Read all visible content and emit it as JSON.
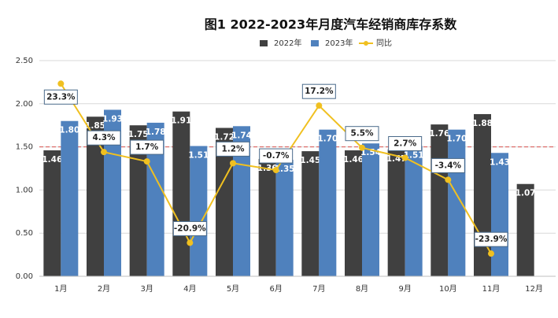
{
  "chart_data": {
    "type": "bar_line",
    "title": "图1  2022-2023年月度汽车经销商库存系数",
    "categories": [
      "1月",
      "2月",
      "3月",
      "4月",
      "5月",
      "6月",
      "7月",
      "8月",
      "9月",
      "10月",
      "11月",
      "12月"
    ],
    "series": [
      {
        "name": "2022年",
        "color": "#404040",
        "type": "bar",
        "values": [
          1.46,
          1.85,
          1.75,
          1.91,
          1.72,
          1.36,
          1.45,
          1.46,
          1.47,
          1.76,
          1.88,
          1.07
        ],
        "value_labels": [
          "1.46",
          "1.85",
          "1.75",
          "1.91",
          "1.72",
          "1.36",
          "1.45",
          "1.46",
          "1.47",
          "1.76",
          "1.88",
          "1.07"
        ]
      },
      {
        "name": "2023年",
        "color": "#4f81bd",
        "type": "bar",
        "values": [
          1.8,
          1.93,
          1.78,
          1.51,
          1.74,
          1.35,
          1.7,
          1.54,
          1.51,
          1.7,
          1.43,
          null
        ],
        "value_labels": [
          "1.80",
          "1.93",
          "1.78",
          "1.51",
          "1.74",
          "1.35",
          "1.70",
          "1.54",
          "1.51",
          "1.70",
          "1.43",
          null
        ]
      },
      {
        "name": "同比",
        "color": "#f0c020",
        "type": "line",
        "axis": "y2",
        "values": [
          23.3,
          4.3,
          1.7,
          -20.9,
          1.2,
          -0.7,
          17.2,
          5.5,
          2.7,
          -3.4,
          -23.9,
          null
        ],
        "value_labels": [
          "23.3%",
          "4.3%",
          "1.7%",
          "-20.9%",
          "1.2%",
          "-0.7%",
          "17.2%",
          "5.5%",
          "2.7%",
          "-3.4%",
          "-23.9%",
          null
        ]
      }
    ],
    "ylim": [
      0,
      2.5
    ],
    "yticks": [
      {
        "value": 0,
        "label": "0.00"
      },
      {
        "value": 0.5,
        "label": "0.50"
      },
      {
        "value": 1,
        "label": "1.00"
      },
      {
        "value": 1.5,
        "label": "1.50"
      },
      {
        "value": 2,
        "label": "2.00"
      },
      {
        "value": 2.5,
        "label": "2.50"
      }
    ],
    "y2lim": [
      -30.2,
      29.7
    ],
    "reference_line": {
      "value": 1.5,
      "color": "#d9534f"
    },
    "grid": true,
    "legend": "top"
  }
}
